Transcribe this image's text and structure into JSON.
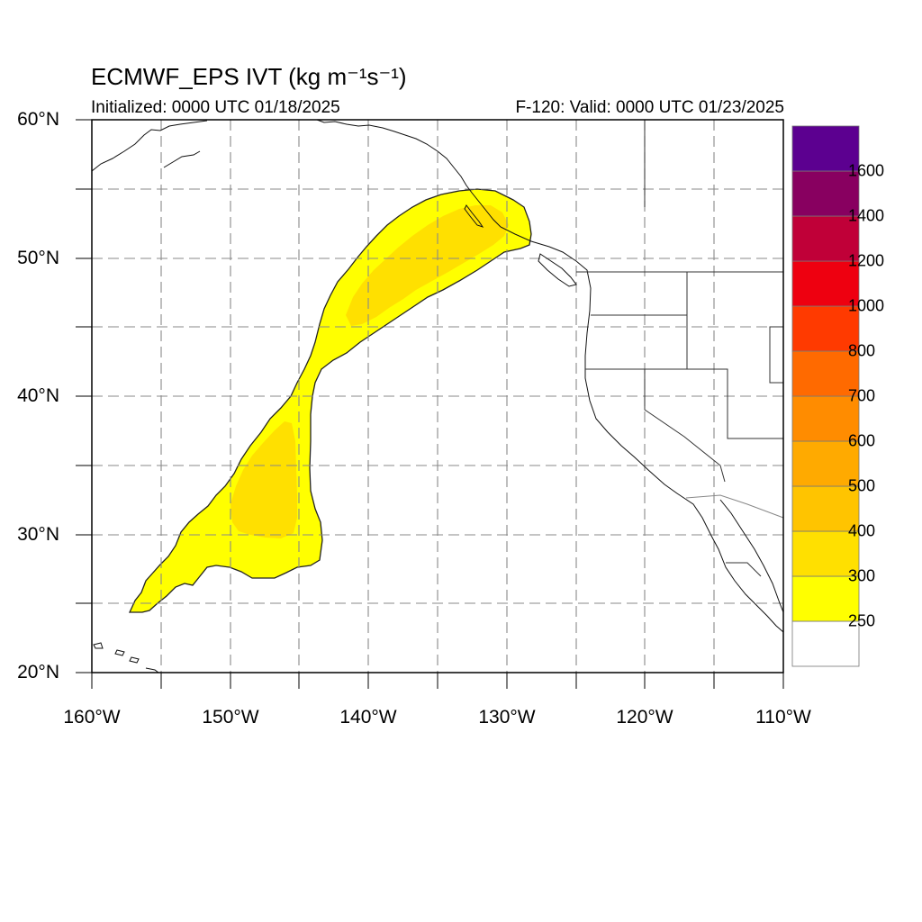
{
  "title": "ECMWF_EPS IVT (kg m⁻¹s⁻¹)",
  "init_label": "Initialized: 0000 UTC 01/18/2025",
  "valid_label": "F-120: Valid: 0000 UTC 01/23/2025",
  "lat_labels": [
    "60°N",
    "50°N",
    "40°N",
    "30°N",
    "20°N"
  ],
  "lon_labels": [
    "160°W",
    "150°W",
    "140°W",
    "130°W",
    "120°W",
    "110°W"
  ],
  "colorbar": {
    "levels": [
      "250",
      "300",
      "400",
      "500",
      "600",
      "700",
      "800",
      "1000",
      "1200",
      "1400",
      "1600"
    ],
    "colors": [
      "#ffffff",
      "#ffff00",
      "#ffe000",
      "#ffc400",
      "#ffaa00",
      "#ff8c00",
      "#ff6a00",
      "#ff3a00",
      "#ee0010",
      "#c00038",
      "#880060",
      "#5c0090"
    ]
  },
  "map": {
    "lon_range": [
      -160,
      -110
    ],
    "lat_range": [
      20,
      60
    ],
    "gridline_style": "dashed gray every 5 degrees",
    "river_fill_colors": {
      "outer": "#ffff00",
      "inner": "#ffe000"
    }
  }
}
